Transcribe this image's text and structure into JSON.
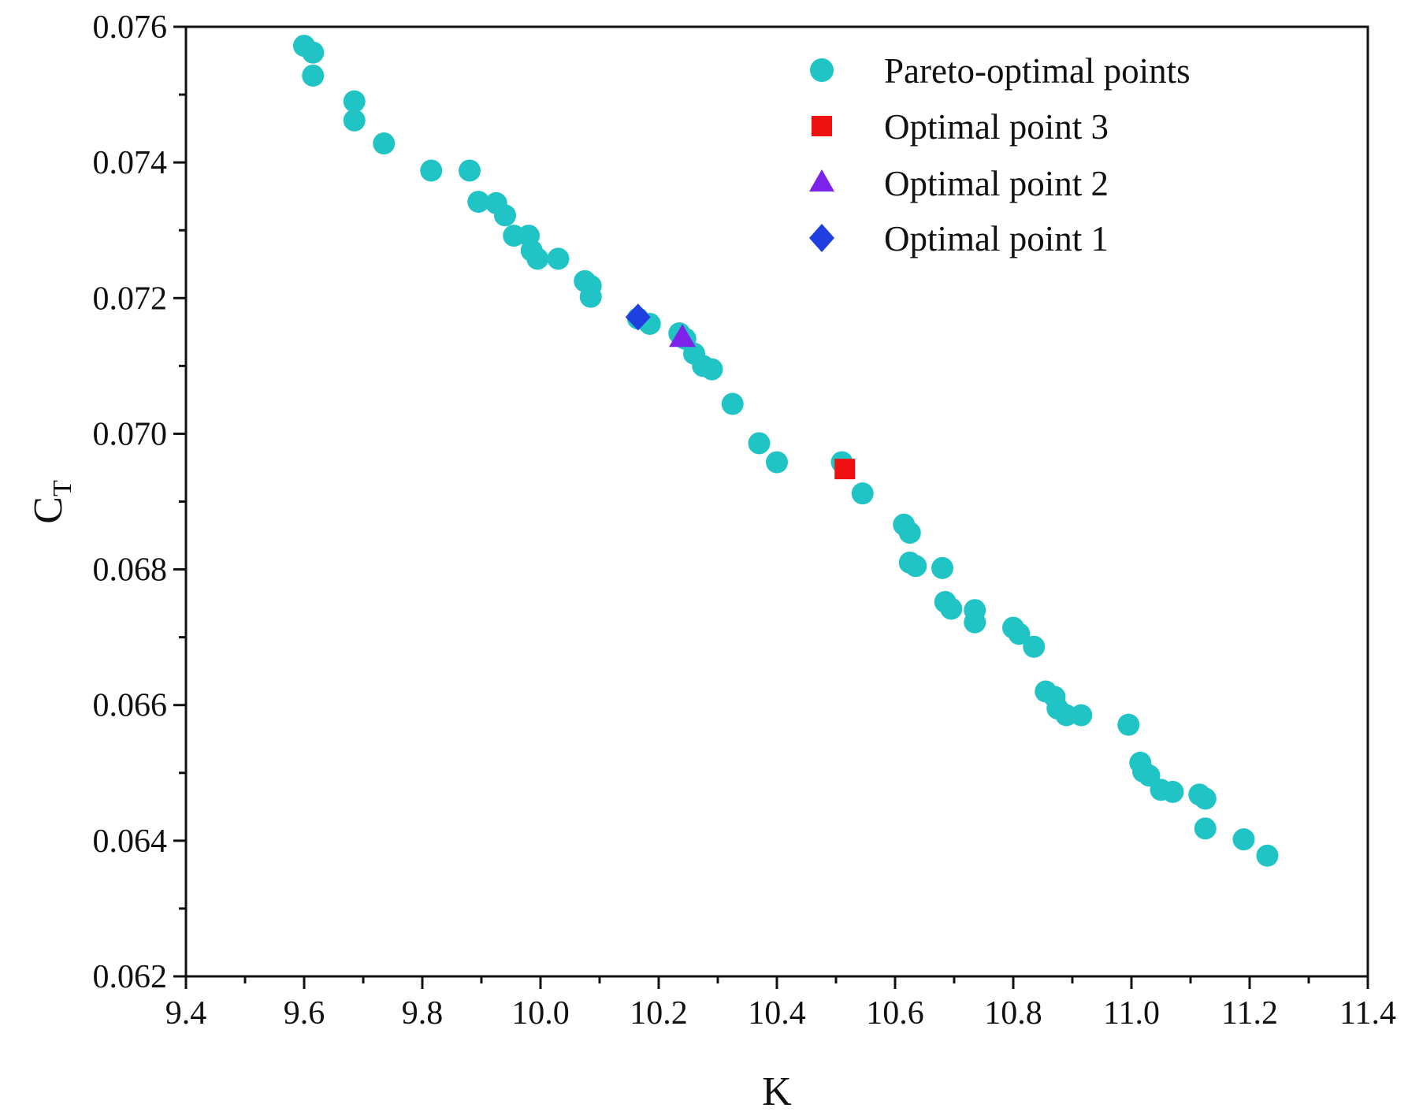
{
  "chart_data": {
    "type": "scatter",
    "title": "",
    "xlabel": "K",
    "ylabel": {
      "main": "C",
      "subscript": "T"
    },
    "xlim": [
      9.4,
      11.4
    ],
    "ylim": [
      0.062,
      0.076
    ],
    "xticks": [
      9.4,
      9.6,
      9.8,
      10.0,
      10.2,
      10.4,
      10.6,
      10.8,
      11.0,
      11.2,
      11.4
    ],
    "xtick_labels": [
      "9.4",
      "9.6",
      "9.8",
      "10.0",
      "10.2",
      "10.4",
      "10.6",
      "10.8",
      "11.0",
      "11.2",
      "11.4"
    ],
    "yticks": [
      0.062,
      0.064,
      0.066,
      0.068,
      0.07,
      0.072,
      0.074,
      0.076
    ],
    "ytick_labels": [
      "0.062",
      "0.064",
      "0.066",
      "0.068",
      "0.070",
      "0.072",
      "0.074",
      "0.076"
    ],
    "grid": false,
    "legend_position": "top-right",
    "series": [
      {
        "name": "Pareto-optimal points",
        "marker": "circle",
        "color": "#20c4c4",
        "points": [
          [
            9.6,
            0.07572
          ],
          [
            9.615,
            0.07562
          ],
          [
            9.615,
            0.07528
          ],
          [
            9.685,
            0.0749
          ],
          [
            9.685,
            0.07462
          ],
          [
            9.735,
            0.07428
          ],
          [
            9.815,
            0.07388
          ],
          [
            9.88,
            0.07388
          ],
          [
            9.895,
            0.07342
          ],
          [
            9.925,
            0.0734
          ],
          [
            9.94,
            0.07322
          ],
          [
            9.955,
            0.07292
          ],
          [
            9.98,
            0.07292
          ],
          [
            9.985,
            0.0727
          ],
          [
            9.995,
            0.07258
          ],
          [
            10.03,
            0.07258
          ],
          [
            10.075,
            0.07225
          ],
          [
            10.085,
            0.07218
          ],
          [
            10.085,
            0.07202
          ],
          [
            10.165,
            0.0717
          ],
          [
            10.185,
            0.07162
          ],
          [
            10.235,
            0.07148
          ],
          [
            10.245,
            0.0714
          ],
          [
            10.26,
            0.07118
          ],
          [
            10.275,
            0.071
          ],
          [
            10.29,
            0.07095
          ],
          [
            10.325,
            0.07044
          ],
          [
            10.37,
            0.06986
          ],
          [
            10.4,
            0.06958
          ],
          [
            10.51,
            0.06958
          ],
          [
            10.545,
            0.06912
          ],
          [
            10.615,
            0.06866
          ],
          [
            10.625,
            0.06854
          ],
          [
            10.625,
            0.0681
          ],
          [
            10.635,
            0.06805
          ],
          [
            10.68,
            0.06802
          ],
          [
            10.685,
            0.06752
          ],
          [
            10.695,
            0.06742
          ],
          [
            10.735,
            0.0674
          ],
          [
            10.735,
            0.06722
          ],
          [
            10.8,
            0.06714
          ],
          [
            10.81,
            0.06705
          ],
          [
            10.835,
            0.06686
          ],
          [
            10.855,
            0.0662
          ],
          [
            10.87,
            0.06612
          ],
          [
            10.875,
            0.06595
          ],
          [
            10.89,
            0.06585
          ],
          [
            10.915,
            0.06585
          ],
          [
            10.995,
            0.06571
          ],
          [
            11.015,
            0.06515
          ],
          [
            11.02,
            0.06502
          ],
          [
            11.03,
            0.06496
          ],
          [
            11.05,
            0.06475
          ],
          [
            11.07,
            0.06472
          ],
          [
            11.115,
            0.06468
          ],
          [
            11.125,
            0.06462
          ],
          [
            11.125,
            0.06418
          ],
          [
            11.19,
            0.06402
          ],
          [
            11.23,
            0.06378
          ]
        ]
      },
      {
        "name": "Optimal point 3",
        "marker": "square",
        "color": "#ee1111",
        "points": [
          [
            10.515,
            0.06948
          ]
        ]
      },
      {
        "name": "Optimal point 2",
        "marker": "triangle",
        "color": "#7d22e8",
        "points": [
          [
            10.24,
            0.07142
          ]
        ]
      },
      {
        "name": "Optimal point 1",
        "marker": "diamond",
        "color": "#1f3fe0",
        "points": [
          [
            10.165,
            0.07172
          ]
        ]
      }
    ]
  }
}
